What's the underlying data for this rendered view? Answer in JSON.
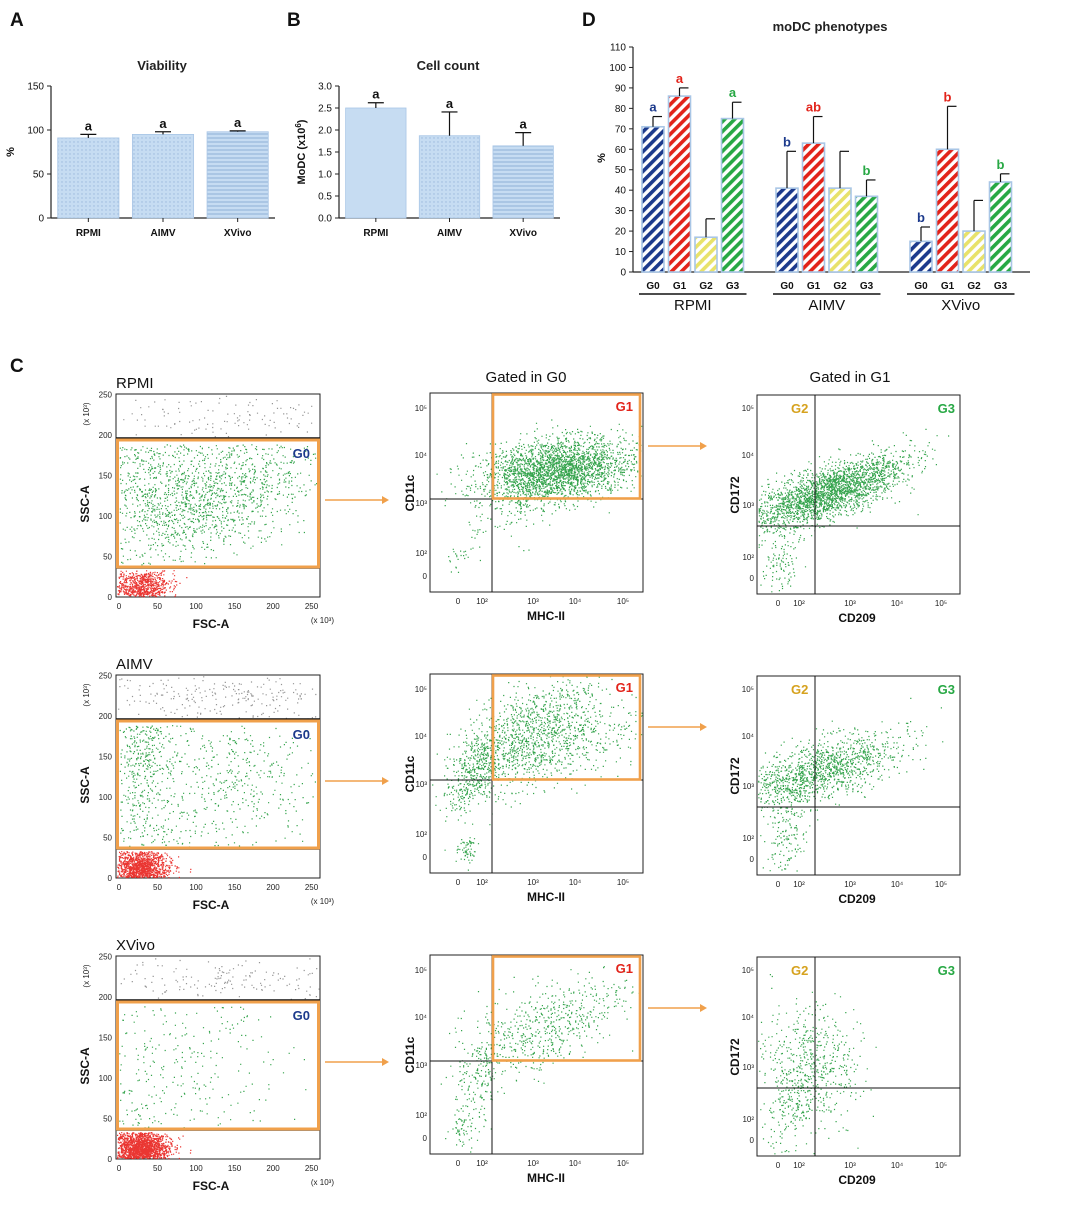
{
  "colors": {
    "bar_fill": "#c6dcf2",
    "bar_stroke": "#a9c6e6",
    "g0": "#1c3a8c",
    "g1": "#e2231a",
    "g2": "#e8e26a",
    "g3": "#27a844",
    "g2_label": "#d6a21e",
    "gate_orange": "#f0a04b",
    "events_green": "#1f9a3a",
    "events_red": "#e8201c",
    "events_grey": "#8a8a8a"
  },
  "panel_letters": {
    "a": "A",
    "b": "B",
    "c": "C",
    "d": "D"
  },
  "chart_data": [
    {
      "id": "viability",
      "type": "bar",
      "title": "Viability",
      "ylabel": "%",
      "xlabel": "",
      "ylim": [
        0,
        150
      ],
      "yticks": [
        "0",
        "50",
        "100",
        "150"
      ],
      "categories": [
        "RPMI",
        "AIMV",
        "XVivo"
      ],
      "values": [
        91,
        95,
        98
      ],
      "errors": [
        4,
        3,
        1
      ],
      "letters": [
        "a",
        "a",
        "a"
      ]
    },
    {
      "id": "cellcount",
      "type": "bar",
      "title": "Cell count",
      "ylabel": "MoDC (x10",
      "ylabel_sup": "6",
      "ylabel_end": ")",
      "xlabel": "",
      "ylim": [
        0,
        3.0
      ],
      "yticks": [
        "0.0",
        "0.5",
        "1.0",
        "1.5",
        "2.0",
        "2.5",
        "3.0"
      ],
      "categories": [
        "RPMI",
        "AIMV",
        "XVivo"
      ],
      "values": [
        2.5,
        1.87,
        1.64
      ],
      "errors": [
        0.12,
        0.54,
        0.3
      ],
      "letters": [
        "a",
        "a",
        "a"
      ]
    },
    {
      "id": "phenotypes",
      "type": "bar",
      "title": "moDC phenotypes",
      "ylabel": "%",
      "xlabel": "",
      "ylim": [
        0,
        110
      ],
      "yticks": [
        "0",
        "10",
        "20",
        "30",
        "40",
        "50",
        "60",
        "70",
        "80",
        "90",
        "100",
        "110"
      ],
      "groups": [
        "RPMI",
        "AIMV",
        "XVivo"
      ],
      "categories": [
        "G0",
        "G1",
        "G2",
        "G3"
      ],
      "series": [
        {
          "name": "RPMI",
          "values": [
            71,
            86,
            17,
            75
          ],
          "errors": [
            5,
            4,
            9,
            8
          ],
          "letters": [
            "a",
            "a",
            "",
            "a"
          ]
        },
        {
          "name": "AIMV",
          "values": [
            41,
            63,
            41,
            37
          ],
          "errors": [
            18,
            13,
            18,
            8
          ],
          "letters": [
            "b",
            "ab",
            "",
            "b"
          ]
        },
        {
          "name": "XVivo",
          "values": [
            15,
            60,
            20,
            44
          ],
          "errors": [
            7,
            21,
            15,
            4
          ],
          "letters": [
            "b",
            "b",
            "",
            "b"
          ]
        }
      ]
    }
  ],
  "flow": {
    "panel_c_rows": [
      "RPMI",
      "AIMV",
      "XVivo"
    ],
    "col2_title": "Gated in G0",
    "col3_title": "Gated in G1",
    "scatter_axes": {
      "x": "FSC-A",
      "y": "SSC-A",
      "x_mult": "(x 10³)",
      "y_mult": "(x 10³)"
    },
    "scatter_ticks": [
      "0",
      "50",
      "100",
      "150",
      "200",
      "250"
    ],
    "gate_g0": "G0",
    "cd11c_axes": {
      "x": "MHC-II",
      "y": "CD11c"
    },
    "gate_g1": "G1",
    "cd172_axes": {
      "x": "CD209",
      "y": "CD172"
    },
    "quad_g2": "G2",
    "quad_g3": "G3",
    "log_ticks": [
      "0",
      "10²",
      "10³",
      "10⁴",
      "10⁵"
    ]
  }
}
